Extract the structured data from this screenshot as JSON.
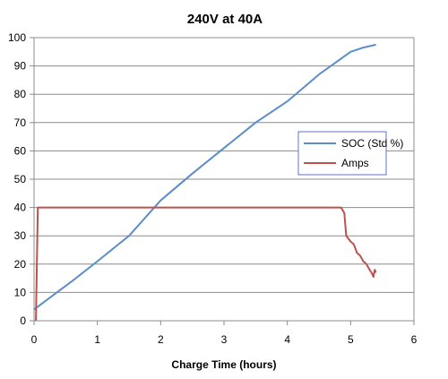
{
  "chart_data": {
    "type": "line",
    "title": "240V at 40A",
    "xlabel": "Charge Time (hours)",
    "ylabel": "",
    "xlim": [
      0,
      6
    ],
    "ylim": [
      0,
      100
    ],
    "xticks": [
      0,
      1,
      2,
      3,
      4,
      5,
      6
    ],
    "yticks": [
      0,
      10,
      20,
      30,
      40,
      50,
      60,
      70,
      80,
      90,
      100
    ],
    "grid": "horizontal",
    "legend_position": "right",
    "series": [
      {
        "name": "SOC (Std %)",
        "color": "#5b8ec8",
        "points": [
          [
            0,
            4
          ],
          [
            0.3,
            9
          ],
          [
            0.6,
            14
          ],
          [
            1.0,
            21
          ],
          [
            1.5,
            30
          ],
          [
            2.0,
            42.5
          ],
          [
            2.5,
            52
          ],
          [
            3.0,
            61
          ],
          [
            3.5,
            70
          ],
          [
            4.0,
            77.5
          ],
          [
            4.5,
            87
          ],
          [
            5.0,
            95
          ],
          [
            5.2,
            96.5
          ],
          [
            5.4,
            97.5
          ]
        ]
      },
      {
        "name": "Amps",
        "color": "#c0504d",
        "points": [
          [
            0.03,
            0
          ],
          [
            0.06,
            40
          ],
          [
            0.1,
            40
          ],
          [
            0.5,
            40
          ],
          [
            1.0,
            40
          ],
          [
            1.5,
            40
          ],
          [
            2.0,
            40
          ],
          [
            2.5,
            40
          ],
          [
            3.0,
            40
          ],
          [
            3.5,
            40
          ],
          [
            4.0,
            40
          ],
          [
            4.5,
            40
          ],
          [
            4.85,
            40
          ],
          [
            4.9,
            38
          ],
          [
            4.93,
            30
          ],
          [
            5.0,
            28
          ],
          [
            5.05,
            27
          ],
          [
            5.1,
            24
          ],
          [
            5.15,
            23
          ],
          [
            5.2,
            21
          ],
          [
            5.25,
            20
          ],
          [
            5.3,
            18
          ],
          [
            5.33,
            17
          ],
          [
            5.36,
            15.5
          ],
          [
            5.38,
            18
          ],
          [
            5.4,
            17
          ]
        ]
      }
    ]
  }
}
